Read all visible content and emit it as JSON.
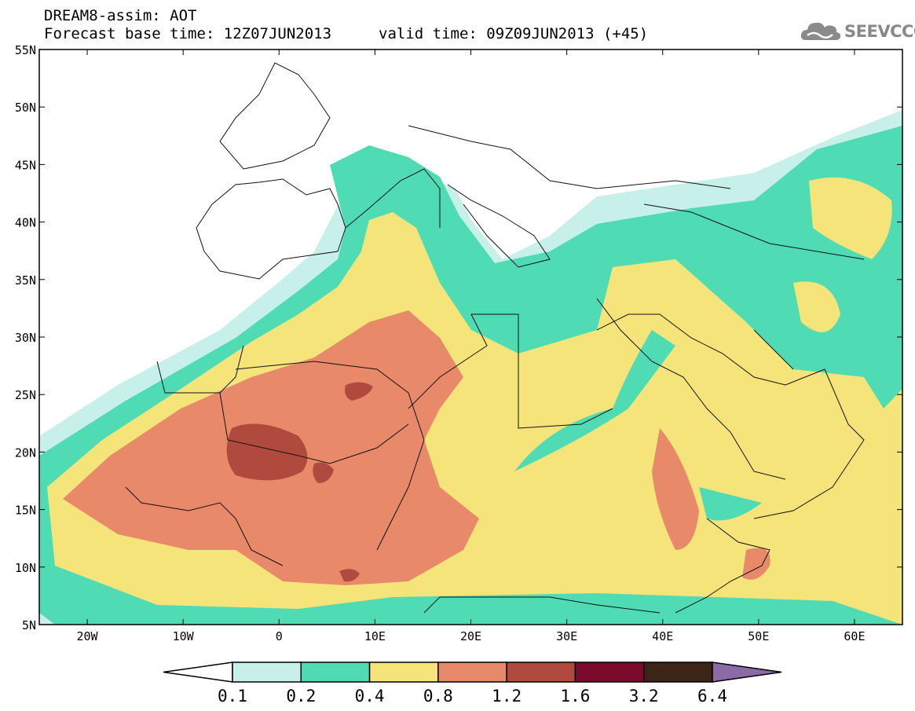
{
  "header": {
    "title": "DREAM8-assim: AOT",
    "base_time": "Forecast base time: 12Z07JUN2013",
    "valid_time": "valid time: 09Z09JUN2013 (+45)"
  },
  "logo": {
    "text": "SEEVCCC",
    "icon": "cloud-icon",
    "color": "#888888"
  },
  "map": {
    "lat_labels": [
      "55N",
      "50N",
      "45N",
      "40N",
      "35N",
      "30N",
      "25N",
      "20N",
      "15N",
      "10N",
      "5N"
    ],
    "lon_labels": [
      "20W",
      "10W",
      "0",
      "10E",
      "20E",
      "30E",
      "40E",
      "50E",
      "60E"
    ]
  },
  "colorbar": {
    "labels": [
      "0.1",
      "0.2",
      "0.4",
      "0.8",
      "1.2",
      "1.6",
      "3.2",
      "6.4"
    ],
    "colors": [
      "#ffffff",
      "#c8f0ea",
      "#4fdcb4",
      "#f5e47a",
      "#e88a6a",
      "#b04a3e",
      "#7c0a2c",
      "#3c2416",
      "#8c6aa6"
    ]
  }
}
